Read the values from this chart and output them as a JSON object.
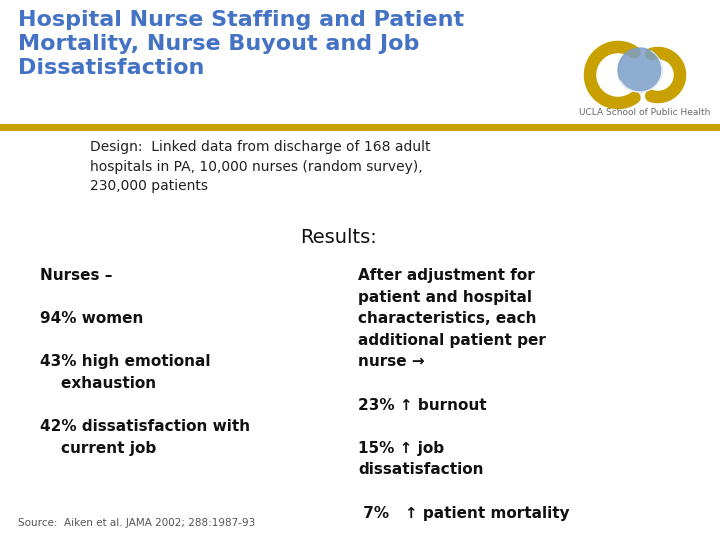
{
  "title_line1": "Hospital Nurse Staffing and Patient",
  "title_line2": "Mortality, Nurse Buyout and Job",
  "title_line3": "Dissatisfaction",
  "title_color": "#4472C4",
  "background_color": "#FFFFFF",
  "header_bar_color": "#C8A000",
  "design_text": "Design:  Linked data from discharge of 168 adult\nhospitals in PA, 10,000 nurses (random survey),\n230,000 patients",
  "results_label": "Results:",
  "left_col_text": "Nurses –\n\n94% women\n\n43% high emotional\n    exhaustion\n\n42% dissatisfaction with\n    current job",
  "right_col_text": "After adjustment for\npatient and hospital\ncharacteristics, each\nadditional patient per\nnurse →\n\n23% ↑ burnout\n\n15% ↑ job\ndissatisfaction\n\n 7%   ↑ patient mortality",
  "source_text": "Source:  Aiken et al. JAMA 2002; 288:1987-93",
  "ucla_label": "UCLA School of Public Health",
  "title_fontsize": 16,
  "design_fontsize": 10,
  "results_fontsize": 14,
  "body_fontsize": 11,
  "source_fontsize": 7.5
}
